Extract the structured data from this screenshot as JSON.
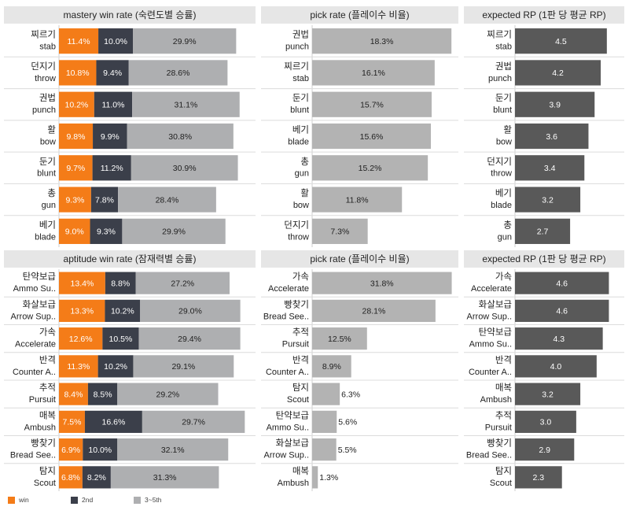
{
  "colors": {
    "win": "#f47c18",
    "second": "#3b3f4a",
    "rest": "#aeafb1",
    "pick": "#b3b3b3",
    "rp": "#595959",
    "panel_header_bg": "#e6e6e6",
    "row_sep": "#dcdcdc"
  },
  "legend": {
    "win_label": "win",
    "second_label": "2nd",
    "rest_label": "3~5th"
  },
  "chart_data": [
    {
      "type": "bar",
      "stacked": true,
      "orientation": "horizontal",
      "title": "mastery win rate (숙련도별 승률)",
      "categories": [
        {
          "ko": "찌르기",
          "en": "stab"
        },
        {
          "ko": "던지기",
          "en": "throw"
        },
        {
          "ko": "권법",
          "en": "punch"
        },
        {
          "ko": "활",
          "en": "bow"
        },
        {
          "ko": "둔기",
          "en": "blunt"
        },
        {
          "ko": "총",
          "en": "gun"
        },
        {
          "ko": "베기",
          "en": "blade"
        }
      ],
      "series": [
        {
          "name": "win",
          "values": [
            11.4,
            10.8,
            10.2,
            9.8,
            9.7,
            9.3,
            9.0
          ]
        },
        {
          "name": "2nd",
          "values": [
            10.0,
            9.4,
            11.0,
            9.9,
            11.2,
            7.8,
            9.3
          ]
        },
        {
          "name": "3~5th",
          "values": [
            29.9,
            28.6,
            31.1,
            30.8,
            30.9,
            28.4,
            29.9
          ]
        }
      ],
      "value_suffix": "%",
      "xlim": [
        0,
        56
      ]
    },
    {
      "type": "bar",
      "orientation": "horizontal",
      "title": "pick rate (플레이수 비율)",
      "categories": [
        {
          "ko": "권법",
          "en": "punch"
        },
        {
          "ko": "찌르기",
          "en": "stab"
        },
        {
          "ko": "둔기",
          "en": "blunt"
        },
        {
          "ko": "베기",
          "en": "blade"
        },
        {
          "ko": "총",
          "en": "gun"
        },
        {
          "ko": "활",
          "en": "bow"
        },
        {
          "ko": "던지기",
          "en": "throw"
        }
      ],
      "values": [
        18.3,
        16.1,
        15.7,
        15.6,
        15.2,
        11.8,
        7.3
      ],
      "value_suffix": "%",
      "xlim": [
        0,
        18.8
      ]
    },
    {
      "type": "bar",
      "orientation": "horizontal",
      "title": "expected RP (1판 당 평균 RP)",
      "categories": [
        {
          "ko": "찌르기",
          "en": "stab"
        },
        {
          "ko": "권법",
          "en": "punch"
        },
        {
          "ko": "둔기",
          "en": "blunt"
        },
        {
          "ko": "활",
          "en": "bow"
        },
        {
          "ko": "던지기",
          "en": "throw"
        },
        {
          "ko": "베기",
          "en": "blade"
        },
        {
          "ko": "총",
          "en": "gun"
        }
      ],
      "values": [
        4.5,
        4.2,
        3.9,
        3.6,
        3.4,
        3.2,
        2.7
      ],
      "value_suffix": "",
      "xlim": [
        0,
        5.2
      ]
    },
    {
      "type": "bar",
      "stacked": true,
      "orientation": "horizontal",
      "title": "aptitude win rate (잠재력별 승률)",
      "categories": [
        {
          "ko": "탄약보급",
          "en": "Ammo Su.."
        },
        {
          "ko": "화살보급",
          "en": "Arrow Sup.."
        },
        {
          "ko": "가속",
          "en": "Accelerate"
        },
        {
          "ko": "반격",
          "en": "Counter A.."
        },
        {
          "ko": "추적",
          "en": "Pursuit"
        },
        {
          "ko": "매복",
          "en": "Ambush"
        },
        {
          "ko": "빵찾기",
          "en": "Bread See.."
        },
        {
          "ko": "탐지",
          "en": "Scout"
        }
      ],
      "series": [
        {
          "name": "win",
          "values": [
            13.4,
            13.3,
            12.6,
            11.3,
            8.4,
            7.5,
            6.9,
            6.8
          ]
        },
        {
          "name": "2nd",
          "values": [
            8.8,
            10.2,
            10.5,
            10.2,
            8.5,
            16.6,
            10.0,
            8.2
          ]
        },
        {
          "name": "3~5th",
          "values": [
            27.2,
            29.0,
            29.4,
            29.1,
            29.2,
            29.7,
            32.1,
            31.3
          ]
        }
      ],
      "value_suffix": "%",
      "xlim": [
        0,
        56
      ]
    },
    {
      "type": "bar",
      "orientation": "horizontal",
      "title": "pick rate (플레이수 비율)",
      "categories": [
        {
          "ko": "가속",
          "en": "Accelerate"
        },
        {
          "ko": "빵찾기",
          "en": "Bread See.."
        },
        {
          "ko": "추적",
          "en": "Pursuit"
        },
        {
          "ko": "반격",
          "en": "Counter A.."
        },
        {
          "ko": "탐지",
          "en": "Scout"
        },
        {
          "ko": "탄약보급",
          "en": "Ammo Su.."
        },
        {
          "ko": "화살보급",
          "en": "Arrow Sup.."
        },
        {
          "ko": "매복",
          "en": "Ambush"
        }
      ],
      "values": [
        31.8,
        28.1,
        12.5,
        8.9,
        6.3,
        5.6,
        5.5,
        1.3
      ],
      "value_suffix": "%",
      "xlim": [
        0,
        32.6
      ]
    },
    {
      "type": "bar",
      "orientation": "horizontal",
      "title": "expected RP (1판 당 평균 RP)",
      "categories": [
        {
          "ko": "가속",
          "en": "Accelerate"
        },
        {
          "ko": "화살보급",
          "en": "Arrow Sup.."
        },
        {
          "ko": "탄약보급",
          "en": "Ammo Su.."
        },
        {
          "ko": "반격",
          "en": "Counter A.."
        },
        {
          "ko": "매복",
          "en": "Ambush"
        },
        {
          "ko": "추적",
          "en": "Pursuit"
        },
        {
          "ko": "빵찾기",
          "en": "Bread See.."
        },
        {
          "ko": "탐지",
          "en": "Scout"
        }
      ],
      "values": [
        4.6,
        4.6,
        4.3,
        4.0,
        3.2,
        3.0,
        2.9,
        2.3
      ],
      "value_suffix": "",
      "xlim": [
        0,
        5.2
      ]
    }
  ]
}
